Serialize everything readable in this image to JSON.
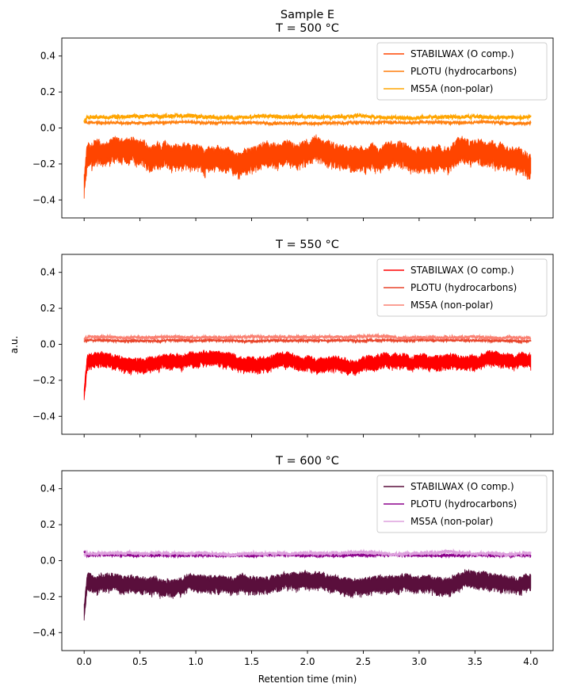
{
  "chart_data": {
    "type": "line",
    "suptitle": "Sample E",
    "xlabel": "Retention time (min)",
    "ylabel": "a.u.",
    "xlim": [
      -0.2,
      4.2
    ],
    "ylim": [
      -0.5,
      0.5
    ],
    "xticks": [
      0.0,
      0.5,
      1.0,
      1.5,
      2.0,
      2.5,
      3.0,
      3.5,
      4.0
    ],
    "xtick_labels": [
      "0.0",
      "0.5",
      "1.0",
      "1.5",
      "2.0",
      "2.5",
      "3.0",
      "3.5",
      "4.0"
    ],
    "yticks": [
      0.4,
      0.2,
      0.0,
      -0.2,
      -0.4
    ],
    "ytick_labels": [
      "0.4",
      "0.2",
      "0.0",
      "−0.2",
      "−0.4"
    ],
    "legend_position": "top-right",
    "panels": [
      {
        "title": "T = 500 °C",
        "series": [
          {
            "name": "STABILWAX (O comp.)",
            "color": "#ff4500",
            "baseline": -0.16,
            "noise": 0.05,
            "wander": 0.03,
            "start_value": -0.32,
            "x_start": 0.0,
            "x_end": 4.0,
            "fill_band": true
          },
          {
            "name": "PLOTU (hydrocarbons)",
            "color": "#ff7f0e",
            "baseline": 0.03,
            "noise": 0.006,
            "wander": 0.004,
            "start_value": 0.03,
            "x_start": 0.0,
            "x_end": 4.0,
            "fill_band": false
          },
          {
            "name": "MS5A (non-polar)",
            "color": "#ffa500",
            "baseline": 0.06,
            "noise": 0.01,
            "wander": 0.006,
            "start_value": 0.04,
            "x_start": 0.0,
            "x_end": 4.0,
            "fill_band": false
          }
        ]
      },
      {
        "title": "T = 550 °C",
        "series": [
          {
            "name": "STABILWAX (O comp.)",
            "color": "#ff0000",
            "baseline": -0.1,
            "noise": 0.03,
            "wander": 0.02,
            "start_value": -0.28,
            "x_start": 0.0,
            "x_end": 4.0,
            "fill_band": true
          },
          {
            "name": "PLOTU (hydrocarbons)",
            "color": "#e8442a",
            "baseline": 0.02,
            "noise": 0.005,
            "wander": 0.003,
            "start_value": 0.02,
            "x_start": 0.0,
            "x_end": 4.0,
            "fill_band": false
          },
          {
            "name": "MS5A (non-polar)",
            "color": "#fa8072",
            "baseline": 0.04,
            "noise": 0.008,
            "wander": 0.004,
            "start_value": 0.03,
            "x_start": 0.0,
            "x_end": 4.0,
            "fill_band": false
          }
        ]
      },
      {
        "title": "T = 600 °C",
        "series": [
          {
            "name": "STABILWAX (O comp.)",
            "color": "#5a0f3c",
            "baseline": -0.13,
            "noise": 0.035,
            "wander": 0.02,
            "start_value": -0.29,
            "x_start": 0.0,
            "x_end": 4.0,
            "fill_band": true
          },
          {
            "name": "PLOTU (hydrocarbons)",
            "color": "#8b008b",
            "baseline": 0.03,
            "noise": 0.006,
            "wander": 0.003,
            "start_value": 0.05,
            "x_start": 0.0,
            "x_end": 4.0,
            "fill_band": false
          },
          {
            "name": "MS5A (non-polar)",
            "color": "#dda0dd",
            "baseline": 0.04,
            "noise": 0.01,
            "wander": 0.005,
            "start_value": 0.03,
            "x_start": 0.0,
            "x_end": 4.0,
            "fill_band": false
          }
        ]
      }
    ]
  }
}
